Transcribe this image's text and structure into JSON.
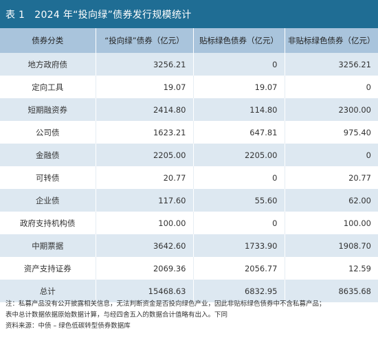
{
  "title": {
    "label": "表 1",
    "text": "2024 年“投向绿”债券发行规模统计"
  },
  "table": {
    "headers": [
      "债券分类",
      "“投向绿”债券（亿元）",
      "贴标绿色债券（亿元）",
      "非贴标绿色债券（亿元）"
    ],
    "rows": [
      [
        "地方政府债",
        "3256.21",
        "0",
        "3256.21"
      ],
      [
        "定向工具",
        "19.07",
        "19.07",
        "0"
      ],
      [
        "短期融资券",
        "2414.80",
        "114.80",
        "2300.00"
      ],
      [
        "公司债",
        "1623.21",
        "647.81",
        "975.40"
      ],
      [
        "金融债",
        "2205.00",
        "2205.00",
        "0"
      ],
      [
        "可转债",
        "20.77",
        "0",
        "20.77"
      ],
      [
        "企业债",
        "117.60",
        "55.60",
        "62.00"
      ],
      [
        "政府支持机构债",
        "100.00",
        "0",
        "100.00"
      ],
      [
        "中期票据",
        "3642.60",
        "1733.90",
        "1908.70"
      ],
      [
        "资产支持证券",
        "2069.36",
        "2056.77",
        "12.59"
      ],
      [
        "总计",
        "15468.63",
        "6832.95",
        "8635.68"
      ]
    ]
  },
  "notes": {
    "line1": "注：私募产品没有公开披露相关信息，无法判断资金是否投向绿色产业，因此非贴标绿色债券中不含私募产品；",
    "line2": "表中总计数据依据原始数据计算，与经四舍五入的数据合计值略有出入。下同",
    "source": "资料来源：中债 – 绿色低碳转型债券数据库"
  },
  "colors": {
    "title_bg": "#1f6d94",
    "header_bg": "#a9c4dc",
    "stripe_bg": "#dde8f1"
  }
}
